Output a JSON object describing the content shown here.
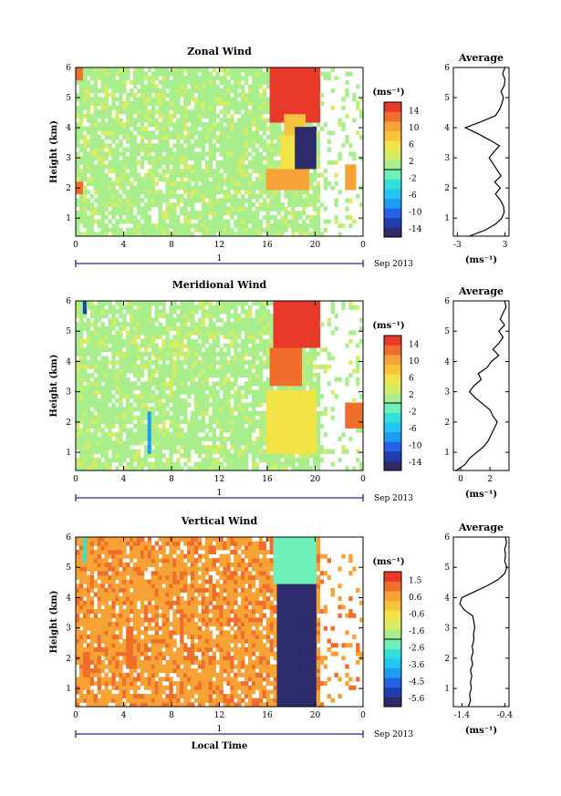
{
  "palette": [
    "#2d2b6a",
    "#1e3fb0",
    "#2563e6",
    "#1f9cf0",
    "#22c6f2",
    "#33e0d8",
    "#6ff0b8",
    "#a8ee8c",
    "#d6ec64",
    "#f2e446",
    "#f8c33c",
    "#f7a235",
    "#f06d2c",
    "#e8392a"
  ],
  "chart_data": [
    {
      "type": "heatmap",
      "id": "zonal",
      "title": "Zonal Wind",
      "ylabel": "Height (km)",
      "xlabel": "",
      "x_ticks": [
        "0",
        "4",
        "8",
        "12",
        "16",
        "20",
        "0"
      ],
      "xlim": [
        0,
        24
      ],
      "y_ticks": [
        "1",
        "2",
        "3",
        "4",
        "5",
        "6"
      ],
      "ylim": [
        0.4,
        6
      ],
      "date_label": "1",
      "month_label": "Sep 2013",
      "colorbar_unit": "(ms⁻¹)",
      "colorbar_ticks": [
        "14",
        "10",
        "6",
        "2",
        "-2",
        "-6",
        "-10",
        "-14"
      ],
      "colorbar_range": [
        -16,
        16
      ],
      "background_value": 1.5,
      "regions": [
        {
          "t0": 16.3,
          "t1": 20.4,
          "h0": 4.2,
          "h1": 6.0,
          "v": 14
        },
        {
          "t0": 17.5,
          "t1": 19.2,
          "h0": 3.8,
          "h1": 4.5,
          "v": 8
        },
        {
          "t0": 17.0,
          "t1": 19.0,
          "h0": 2.6,
          "h1": 3.8,
          "v": 6
        },
        {
          "t0": 18.3,
          "t1": 20.0,
          "h0": 2.6,
          "h1": 4.0,
          "v": -14
        },
        {
          "t0": 16.0,
          "t1": 19.5,
          "h0": 2.0,
          "h1": 2.6,
          "v": 10
        },
        {
          "t0": 0.0,
          "t1": 0.6,
          "h0": 1.8,
          "h1": 2.2,
          "v": 12
        },
        {
          "t0": 0.0,
          "t1": 0.5,
          "h0": 5.6,
          "h1": 6.0,
          "v": 12
        },
        {
          "t0": 22.5,
          "t1": 23.5,
          "h0": 2.0,
          "h1": 2.8,
          "v": 10
        }
      ],
      "avg_profile": {
        "title": "Average",
        "xlabel": "(ms⁻¹)",
        "x_ticks": [
          "-3",
          "3"
        ],
        "xlim": [
          -3.5,
          3.5
        ],
        "heights": [
          0.4,
          0.6,
          0.8,
          1.0,
          1.2,
          1.4,
          1.6,
          1.8,
          2.0,
          2.2,
          2.4,
          2.6,
          2.8,
          3.0,
          3.2,
          3.4,
          3.6,
          3.8,
          4.0,
          4.2,
          4.4,
          4.6,
          4.8,
          5.0,
          5.2,
          5.4,
          5.6,
          5.8,
          6.0
        ],
        "values": [
          -1.5,
          0.5,
          1.8,
          2.6,
          2.9,
          2.8,
          2.4,
          1.8,
          2.4,
          1.7,
          2.5,
          2.0,
          1.5,
          1.0,
          1.6,
          2.3,
          1.0,
          -0.4,
          -2.0,
          0.0,
          1.8,
          2.3,
          2.6,
          2.8,
          2.5,
          2.9,
          3.0,
          2.7,
          3.0
        ]
      }
    },
    {
      "type": "heatmap",
      "id": "meridional",
      "title": "Meridional Wind",
      "ylabel": "Height (km)",
      "xlabel": "",
      "x_ticks": [
        "0",
        "4",
        "8",
        "12",
        "16",
        "20",
        "0"
      ],
      "xlim": [
        0,
        24
      ],
      "y_ticks": [
        "1",
        "2",
        "3",
        "4",
        "5",
        "6"
      ],
      "ylim": [
        0.4,
        6
      ],
      "date_label": "1",
      "month_label": "Sep 2013",
      "colorbar_unit": "(ms⁻¹)",
      "colorbar_ticks": [
        "14",
        "10",
        "6",
        "2",
        "-2",
        "-6",
        "-10",
        "-14"
      ],
      "colorbar_range": [
        -16,
        16
      ],
      "background_value": 1.5,
      "regions": [
        {
          "t0": 16.5,
          "t1": 20.3,
          "h0": 4.4,
          "h1": 6.0,
          "v": 14
        },
        {
          "t0": 16.2,
          "t1": 19.0,
          "h0": 3.2,
          "h1": 4.4,
          "v": 12
        },
        {
          "t0": 16.0,
          "t1": 20.0,
          "h0": 1.0,
          "h1": 3.0,
          "v": 6
        },
        {
          "t0": 6.0,
          "t1": 6.4,
          "h0": 1.0,
          "h1": 2.4,
          "v": -8
        },
        {
          "t0": 0.5,
          "t1": 0.9,
          "h0": 5.6,
          "h1": 6.0,
          "v": -12
        },
        {
          "t0": 22.6,
          "t1": 24.0,
          "h0": 1.8,
          "h1": 2.6,
          "v": 12
        }
      ],
      "avg_profile": {
        "title": "Average",
        "xlabel": "(ms⁻¹)",
        "x_ticks": [
          "0",
          "2"
        ],
        "xlim": [
          -0.5,
          3.3
        ],
        "heights": [
          0.4,
          0.6,
          0.8,
          1.0,
          1.2,
          1.4,
          1.6,
          1.8,
          2.0,
          2.2,
          2.4,
          2.6,
          2.8,
          3.0,
          3.2,
          3.4,
          3.6,
          3.8,
          4.0,
          4.2,
          4.4,
          4.6,
          4.8,
          5.0,
          5.2,
          5.4,
          5.6,
          5.8,
          6.0
        ],
        "values": [
          -0.3,
          0.3,
          0.6,
          1.1,
          1.6,
          1.9,
          2.1,
          2.3,
          2.5,
          2.2,
          2.0,
          1.5,
          1.0,
          0.6,
          0.9,
          1.4,
          1.2,
          1.8,
          2.1,
          2.6,
          2.2,
          2.6,
          2.9,
          2.6,
          3.0,
          2.7,
          2.9,
          3.1,
          3.0
        ]
      }
    },
    {
      "type": "heatmap",
      "id": "vertical",
      "title": "Vertical Wind",
      "ylabel": "Height (km)",
      "xlabel": "Local Time",
      "x_ticks": [
        "0",
        "4",
        "8",
        "12",
        "16",
        "20",
        "0"
      ],
      "xlim": [
        0,
        24
      ],
      "y_ticks": [
        "1",
        "2",
        "3",
        "4",
        "5",
        "6"
      ],
      "ylim": [
        0.4,
        6
      ],
      "date_label": "1",
      "month_label": "Sep 2013",
      "colorbar_unit": "(ms⁻¹)",
      "colorbar_ticks": [
        "1.5",
        "0.6",
        "-0.6",
        "-1.6",
        "-2.6",
        "-3.6",
        "-4.5",
        "-5.6"
      ],
      "colorbar_range": [
        -6.1,
        2.0
      ],
      "background_value": 0.7,
      "regions": [
        {
          "t0": 16.5,
          "t1": 20.2,
          "h0": 4.4,
          "h1": 6.0,
          "v": -2.4
        },
        {
          "t0": 16.8,
          "t1": 20.1,
          "h0": 0.4,
          "h1": 4.4,
          "v": -6.0
        },
        {
          "t0": 0.5,
          "t1": 0.9,
          "h0": 5.2,
          "h1": 6.0,
          "v": -3.2
        },
        {
          "t0": 4.2,
          "t1": 4.7,
          "h0": 1.6,
          "h1": 3.0,
          "v": 1.4
        },
        {
          "t0": 8.6,
          "t1": 9.0,
          "h0": 2.6,
          "h1": 3.6,
          "v": 1.4
        },
        {
          "t0": 0.6,
          "t1": 1.2,
          "h0": 1.4,
          "h1": 2.2,
          "v": 1.4
        }
      ],
      "avg_profile": {
        "title": "Average",
        "xlabel": "(ms⁻¹)",
        "x_ticks": [
          "-1.4",
          "-0.4"
        ],
        "xlim": [
          -1.6,
          -0.3
        ],
        "heights": [
          0.4,
          0.6,
          0.8,
          1.0,
          1.2,
          1.4,
          1.6,
          1.8,
          2.0,
          2.2,
          2.4,
          2.6,
          2.8,
          3.0,
          3.2,
          3.4,
          3.6,
          3.8,
          4.0,
          4.2,
          4.4,
          4.6,
          4.8,
          5.0,
          5.2,
          5.4,
          5.6,
          5.8,
          6.0
        ],
        "values": [
          -1.25,
          -1.2,
          -1.22,
          -1.18,
          -1.2,
          -1.17,
          -1.2,
          -1.15,
          -1.18,
          -1.14,
          -1.16,
          -1.12,
          -1.13,
          -1.1,
          -1.12,
          -1.15,
          -1.35,
          -1.45,
          -1.4,
          -1.1,
          -0.8,
          -0.55,
          -0.4,
          -0.35,
          -0.4,
          -0.38,
          -0.4,
          -0.36,
          -0.38
        ]
      }
    }
  ]
}
